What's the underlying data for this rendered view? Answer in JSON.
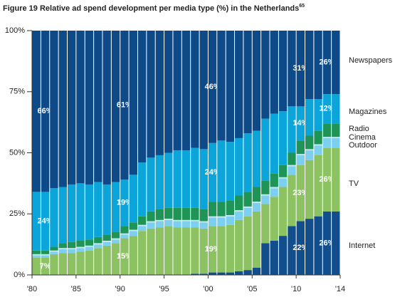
{
  "chart_data": {
    "type": "stacked_bar",
    "title": "Figure 19 Relative ad spend development per media type (%) in the Netherlands",
    "title_note": "65",
    "categories": [
      "'80",
      null,
      null,
      null,
      null,
      "'85",
      null,
      null,
      null,
      null,
      "'90",
      null,
      null,
      null,
      null,
      "'95",
      null,
      null,
      null,
      null,
      "'00",
      null,
      null,
      null,
      null,
      "'05",
      null,
      null,
      null,
      null,
      "'10",
      null,
      null,
      null,
      "'14"
    ],
    "ylim": [
      0,
      100
    ],
    "yticks": [
      {
        "value": 0,
        "label": "0%"
      },
      {
        "value": 25,
        "label": "25%"
      },
      {
        "value": 50,
        "label": "50%"
      },
      {
        "value": 75,
        "label": "75%"
      },
      {
        "value": 100,
        "label": "100%"
      }
    ],
    "series": [
      {
        "name": "Internet",
        "color": "#124d8c",
        "values": [
          0,
          0,
          0,
          0,
          0,
          0,
          0,
          0,
          0,
          0,
          0,
          0,
          0,
          0,
          0,
          0,
          0,
          0,
          0.5,
          0.5,
          1,
          1,
          1,
          1.5,
          2,
          3,
          13,
          14,
          16,
          20,
          22,
          23,
          24,
          26,
          26
        ],
        "value_labels": [
          null,
          null,
          null,
          null,
          null,
          null,
          null,
          null,
          null,
          null,
          null,
          null,
          null,
          null,
          null,
          null,
          null,
          null,
          null,
          null,
          null,
          null,
          null,
          null,
          null,
          null,
          null,
          null,
          null,
          null,
          "22%",
          null,
          null,
          "26%",
          null
        ]
      },
      {
        "name": "TV",
        "color": "#8dc263",
        "values": [
          7,
          7,
          8.5,
          9,
          9,
          9.5,
          10,
          11,
          12,
          13,
          15,
          16,
          18,
          19,
          19.5,
          20,
          19.5,
          19.5,
          19,
          18.5,
          19,
          19,
          19.5,
          21,
          22,
          23,
          16,
          18,
          20,
          21,
          23,
          24,
          25,
          26,
          26
        ],
        "value_labels": [
          null,
          "7%",
          null,
          null,
          null,
          null,
          null,
          null,
          null,
          null,
          "15%",
          null,
          null,
          null,
          null,
          null,
          null,
          null,
          null,
          null,
          "19%",
          null,
          null,
          null,
          null,
          null,
          null,
          null,
          null,
          null,
          "23%",
          null,
          null,
          "26%",
          null
        ]
      },
      {
        "name": "Outdoor",
        "color": "#7ccfee",
        "values": [
          1,
          1,
          1,
          1.5,
          1.5,
          1.5,
          1.5,
          1.5,
          1.5,
          1.5,
          1.5,
          2,
          2,
          2.5,
          2.5,
          2.5,
          2.5,
          2.5,
          2.5,
          2.5,
          3.5,
          3.5,
          3.5,
          3.5,
          3.5,
          3.5,
          3.5,
          3.5,
          3.5,
          3.5,
          4,
          4,
          4,
          4,
          4
        ]
      },
      {
        "name": "Cinema",
        "color": "#c9e6f3",
        "values": [
          0.5,
          0.5,
          0.5,
          0.5,
          0.5,
          0.5,
          0.5,
          0.5,
          0.5,
          0.5,
          0.5,
          0.5,
          0.5,
          0.5,
          0.5,
          0.5,
          0.5,
          0.5,
          0.5,
          0.5,
          0.5,
          0.5,
          0.5,
          0.5,
          0.5,
          0.5,
          0.5,
          0.5,
          0.5,
          0.5,
          0.5,
          0.5,
          0.5,
          0.5,
          0.5
        ]
      },
      {
        "name": "Radio",
        "color": "#1e9457",
        "values": [
          1.5,
          1.5,
          1.5,
          2,
          2.5,
          2.5,
          2.5,
          2.5,
          2.5,
          2.5,
          3,
          3,
          3.5,
          4,
          4.5,
          4.5,
          5,
          5,
          5,
          5,
          6,
          6,
          6,
          6,
          6,
          6,
          5.5,
          5.5,
          5,
          5,
          5.5,
          5.5,
          5.5,
          5.5,
          5.5
        ]
      },
      {
        "name": "Magazines",
        "color": "#0ba5d9",
        "values": [
          24,
          24,
          24,
          23,
          23.5,
          23.5,
          22.5,
          22.5,
          20.5,
          20.5,
          19,
          19.5,
          22,
          22,
          22,
          22.5,
          23.5,
          23.5,
          24.5,
          24.5,
          24,
          25,
          24,
          23.5,
          24,
          23,
          25.5,
          24.5,
          22,
          19,
          14,
          15,
          13,
          12,
          12
        ],
        "value_labels": [
          null,
          "24%",
          null,
          null,
          null,
          null,
          null,
          null,
          null,
          null,
          "19%",
          null,
          null,
          null,
          null,
          null,
          null,
          null,
          null,
          null,
          "24%",
          null,
          null,
          null,
          null,
          null,
          null,
          null,
          null,
          null,
          "14%",
          null,
          null,
          "12%",
          null
        ]
      },
      {
        "name": "Newspapers",
        "color": "#0d4a87",
        "values": [
          66,
          66,
          64.5,
          64,
          63,
          62.5,
          63,
          62,
          63,
          62,
          61,
          59,
          54,
          52,
          51,
          50,
          49,
          49,
          48,
          48.5,
          46,
          45,
          45.5,
          44,
          42,
          41,
          36,
          34,
          33,
          31,
          31,
          28,
          28,
          26,
          26
        ],
        "value_labels": [
          null,
          "66%",
          null,
          null,
          null,
          null,
          null,
          null,
          null,
          null,
          "61%",
          null,
          null,
          null,
          null,
          null,
          null,
          null,
          null,
          null,
          "46%",
          null,
          null,
          null,
          null,
          null,
          null,
          null,
          null,
          null,
          "31%",
          null,
          null,
          "26%",
          null
        ]
      }
    ]
  }
}
